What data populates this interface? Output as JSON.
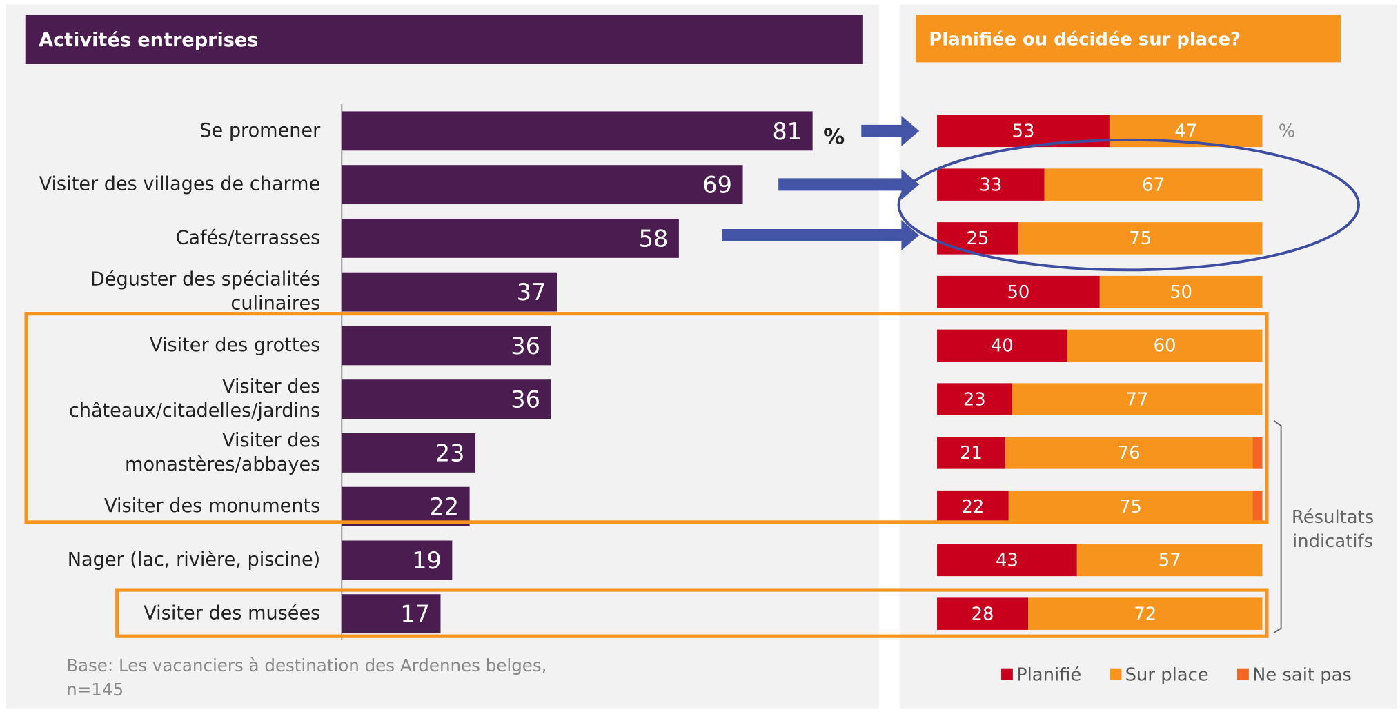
{
  "chart_data": [
    {
      "type": "bar",
      "title": "Activités entreprises",
      "categories": [
        "Se promener",
        "Visiter des villages de charme",
        "Cafés/terrasses",
        "Déguster des spécialités\nculinaires",
        "Visiter des grottes",
        "Visiter des\nchâteaux/citadelles/jardins",
        "Visiter des\nmonastères/abbayes",
        "Visiter des monuments",
        "Nager (lac, rivière, piscine)",
        "Visiter des musées"
      ],
      "values": [
        81,
        69,
        58,
        37,
        36,
        36,
        23,
        22,
        19,
        17
      ],
      "color": "#4a1c50",
      "xlim": [
        0,
        90
      ],
      "unit_label": "%",
      "note": [
        "Base:  Les vacanciers à destination des Ardennes belges,",
        "n=145"
      ]
    },
    {
      "type": "stacked_bar",
      "title": "Planifiée ou décidée sur place?",
      "series": [
        {
          "name": "Planifié",
          "color": "#c8001e",
          "labeled": true,
          "values": [
            53,
            33,
            25,
            50,
            40,
            23,
            21,
            22,
            43,
            28
          ]
        },
        {
          "name": "Sur place",
          "color": "#f7941d",
          "labeled": true,
          "values": [
            47,
            67,
            75,
            50,
            60,
            77,
            76,
            75,
            57,
            72
          ]
        },
        {
          "name": "Ne sait pas",
          "color": "#f26522",
          "labeled": false,
          "values": [
            0,
            0,
            0,
            0,
            0,
            0,
            3,
            3,
            0,
            0
          ]
        }
      ],
      "xlim": [
        0,
        100
      ],
      "unit_label": "%",
      "annotation": [
        "Résultats",
        "indicatifs"
      ]
    }
  ]
}
